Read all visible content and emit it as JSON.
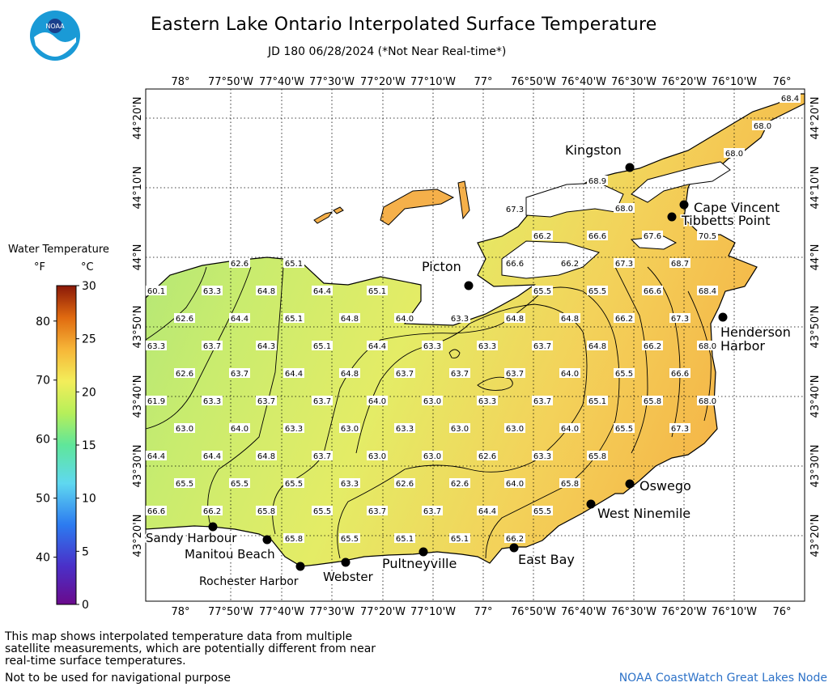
{
  "header": {
    "title": "Eastern Lake Ontario Interpolated Surface Temperature",
    "subtitle": "JD 180 06/28/2024 (*Not Near Real-time*)",
    "logo_text": "NOAA"
  },
  "legend": {
    "title": "Water Temperature",
    "unit_f": "°F",
    "unit_c": "°C",
    "f_ticks": [
      "40",
      "50",
      "60",
      "70",
      "80"
    ],
    "c_ticks": [
      "0",
      "5",
      "10",
      "15",
      "20",
      "25",
      "30"
    ]
  },
  "axes": {
    "longitude_labels": [
      "78°",
      "77°50'W",
      "77°40'W",
      "77°30'W",
      "77°20'W",
      "77°10'W",
      "77°",
      "76°50'W",
      "76°40'W",
      "76°30'W",
      "76°20'W",
      "76°10'W",
      "76°"
    ],
    "latitude_labels": [
      "44°20'N",
      "44°10'N",
      "44°N",
      "43°50'N",
      "43°40'N",
      "43°30'N",
      "43°20'N"
    ]
  },
  "places": [
    {
      "name": "Kingston"
    },
    {
      "name": "Cape Vincent"
    },
    {
      "name": "Tibbetts Point"
    },
    {
      "name": "Picton"
    },
    {
      "name": "Henderson\nHarbor"
    },
    {
      "name": "Oswego"
    },
    {
      "name": "West Ninemile"
    },
    {
      "name": "East Bay"
    },
    {
      "name": "Pultneyville"
    },
    {
      "name": "Webster"
    },
    {
      "name": "Rochester Harbor"
    },
    {
      "name": "Manitou Beach"
    },
    {
      "name": "Sandy Harbour"
    }
  ],
  "temperature_labels": [
    "68.4",
    "68.0",
    "68.0",
    "68.9",
    "67.3",
    "68.0",
    "66.2",
    "66.6",
    "67.6",
    "70.5",
    "62.6",
    "65.1",
    "66.6",
    "66.2",
    "67.3",
    "68.7",
    "60.1",
    "63.3",
    "64.8",
    "64.4",
    "65.1",
    "65.5",
    "65.5",
    "66.6",
    "68.4",
    "62.6",
    "64.4",
    "65.1",
    "64.8",
    "64.0",
    "63.3",
    "64.8",
    "64.8",
    "66.2",
    "67.3",
    "63.3",
    "63.7",
    "64.3",
    "65.1",
    "64.4",
    "63.3",
    "63.3",
    "63.7",
    "64.8",
    "66.2",
    "68.0",
    "62.6",
    "63.7",
    "64.4",
    "64.8",
    "63.7",
    "63.7",
    "63.7",
    "64.0",
    "65.5",
    "66.6",
    "61.9",
    "63.3",
    "63.7",
    "63.7",
    "64.0",
    "63.0",
    "63.3",
    "63.7",
    "65.1",
    "65.8",
    "68.0",
    "63.0",
    "64.0",
    "63.3",
    "63.0",
    "63.3",
    "63.0",
    "63.0",
    "64.0",
    "65.5",
    "67.3",
    "64.4",
    "64.4",
    "64.8",
    "63.7",
    "63.0",
    "63.0",
    "62.6",
    "63.3",
    "65.8",
    "65.5",
    "65.5",
    "65.5",
    "63.3",
    "62.6",
    "62.6",
    "64.0",
    "65.8",
    "66.6",
    "66.2",
    "65.8",
    "65.5",
    "63.7",
    "63.7",
    "64.4",
    "65.5",
    "65.8",
    "65.5",
    "65.1",
    "65.1",
    "66.2"
  ],
  "footer": {
    "note": "This map shows interpolated temperature data from multiple satellite measurements, which are potentially different from near real-time surface temperatures.",
    "nav_warning": "Not to be used for navigational purpose",
    "credit": "NOAA CoastWatch Great Lakes Node"
  },
  "colors": {
    "land": "#ffffff",
    "lake_cool": "#c7ec7a",
    "lake_mid": "#e9ec6a",
    "lake_warm": "#f5c452",
    "shore_warm": "#f0a040",
    "credit": "#2d72c8"
  }
}
